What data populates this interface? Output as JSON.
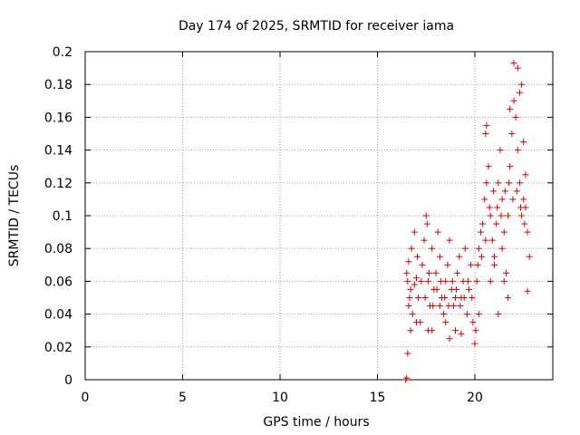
{
  "chart_data": {
    "type": "scatter",
    "title": "Day 174 of 2025, SRMTID for receiver iama",
    "xlabel": "GPS time / hours",
    "ylabel": "SRMTID / TECUs",
    "xlim": [
      0,
      24
    ],
    "ylim": [
      0,
      0.2
    ],
    "x_ticks": [
      "0",
      "5",
      "10",
      "15",
      "20"
    ],
    "x_tick_values": [
      0,
      5,
      10,
      15,
      20
    ],
    "y_ticks": [
      "0",
      "0.02",
      "0.04",
      "0.06",
      "0.08",
      "0.1",
      "0.12",
      "0.14",
      "0.16",
      "0.18",
      "0.2"
    ],
    "y_tick_values": [
      0,
      0.02,
      0.04,
      0.06,
      0.08,
      0.1,
      0.12,
      0.14,
      0.16,
      0.18,
      0.2
    ],
    "grid": true,
    "marker": "+",
    "color": "#e00000",
    "series": [
      {
        "points": [
          [
            16.45,
            0.0
          ],
          [
            16.5,
            0.001
          ],
          [
            16.55,
            0.016
          ],
          [
            16.5,
            0.065
          ],
          [
            16.6,
            0.045
          ],
          [
            16.7,
            0.055
          ],
          [
            16.8,
            0.04
          ],
          [
            16.9,
            0.058
          ],
          [
            16.6,
            0.072
          ],
          [
            16.75,
            0.08
          ],
          [
            17.0,
            0.062
          ],
          [
            17.1,
            0.05
          ],
          [
            17.2,
            0.035
          ],
          [
            17.3,
            0.07
          ],
          [
            17.4,
            0.085
          ],
          [
            17.5,
            0.1
          ],
          [
            17.55,
            0.095
          ],
          [
            17.6,
            0.06
          ],
          [
            17.7,
            0.045
          ],
          [
            17.8,
            0.03
          ],
          [
            17.9,
            0.055
          ],
          [
            18.0,
            0.065
          ],
          [
            18.1,
            0.09
          ],
          [
            18.2,
            0.075
          ],
          [
            18.3,
            0.05
          ],
          [
            18.4,
            0.04
          ],
          [
            18.5,
            0.06
          ],
          [
            18.6,
            0.07
          ],
          [
            18.7,
            0.085
          ],
          [
            18.8,
            0.055
          ],
          [
            18.9,
            0.045
          ],
          [
            19.0,
            0.03
          ],
          [
            19.1,
            0.065
          ],
          [
            19.2,
            0.075
          ],
          [
            19.3,
            0.05
          ],
          [
            19.4,
            0.06
          ],
          [
            19.5,
            0.08
          ],
          [
            19.6,
            0.04
          ],
          [
            19.7,
            0.055
          ],
          [
            19.8,
            0.07
          ],
          [
            19.9,
            0.035
          ],
          [
            20.0,
            0.022
          ],
          [
            20.05,
            0.03
          ],
          [
            20.1,
            0.06
          ],
          [
            20.2,
            0.08
          ],
          [
            20.3,
            0.09
          ],
          [
            20.4,
            0.095
          ],
          [
            20.5,
            0.11
          ],
          [
            20.6,
            0.12
          ],
          [
            20.7,
            0.13
          ],
          [
            20.8,
            0.1
          ],
          [
            20.9,
            0.085
          ],
          [
            21.0,
            0.07
          ],
          [
            21.1,
            0.095
          ],
          [
            21.2,
            0.12
          ],
          [
            21.3,
            0.14
          ],
          [
            21.4,
            0.11
          ],
          [
            21.5,
            0.09
          ],
          [
            21.6,
            0.065
          ],
          [
            21.7,
            0.1
          ],
          [
            21.8,
            0.13
          ],
          [
            21.9,
            0.15
          ],
          [
            22.0,
            0.17
          ],
          [
            22.1,
            0.16
          ],
          [
            22.2,
            0.14
          ],
          [
            22.3,
            0.12
          ],
          [
            22.4,
            0.1
          ],
          [
            22.5,
            0.11
          ],
          [
            22.6,
            0.125
          ],
          [
            22.7,
            0.09
          ],
          [
            22.8,
            0.075
          ],
          [
            22.4,
            0.18
          ],
          [
            22.2,
            0.19
          ],
          [
            22.0,
            0.193
          ],
          [
            21.7,
            0.05
          ],
          [
            21.5,
            0.06
          ],
          [
            22.7,
            0.054
          ],
          [
            21.2,
            0.04
          ],
          [
            20.6,
            0.155
          ],
          [
            20.55,
            0.15
          ],
          [
            21.8,
            0.165
          ],
          [
            22.3,
            0.175
          ],
          [
            22.5,
            0.145
          ],
          [
            16.7,
            0.03
          ],
          [
            17.0,
            0.035
          ],
          [
            17.6,
            0.03
          ],
          [
            18.7,
            0.025
          ],
          [
            19.3,
            0.028
          ],
          [
            18.2,
            0.045
          ],
          [
            19.0,
            0.05
          ],
          [
            17.8,
            0.08
          ],
          [
            16.9,
            0.09
          ],
          [
            18.5,
            0.035
          ],
          [
            20.2,
            0.04
          ],
          [
            20.8,
            0.06
          ],
          [
            21.0,
            0.075
          ],
          [
            21.4,
            0.08
          ],
          [
            22.6,
            0.105
          ],
          [
            16.55,
            0.06
          ],
          [
            16.65,
            0.05
          ],
          [
            17.05,
            0.075
          ],
          [
            17.25,
            0.06
          ],
          [
            17.45,
            0.05
          ],
          [
            17.65,
            0.065
          ],
          [
            17.85,
            0.045
          ],
          [
            18.05,
            0.055
          ],
          [
            18.25,
            0.06
          ],
          [
            18.45,
            0.05
          ],
          [
            18.65,
            0.045
          ],
          [
            18.85,
            0.06
          ],
          [
            19.05,
            0.055
          ],
          [
            19.25,
            0.045
          ],
          [
            19.45,
            0.05
          ],
          [
            19.65,
            0.06
          ],
          [
            19.85,
            0.05
          ],
          [
            20.15,
            0.07
          ],
          [
            20.35,
            0.075
          ],
          [
            20.55,
            0.085
          ],
          [
            20.75,
            0.105
          ],
          [
            20.95,
            0.115
          ],
          [
            21.15,
            0.105
          ],
          [
            21.35,
            0.1
          ],
          [
            21.55,
            0.115
          ],
          [
            21.75,
            0.12
          ],
          [
            21.95,
            0.11
          ],
          [
            22.15,
            0.115
          ],
          [
            22.35,
            0.105
          ],
          [
            22.55,
            0.095
          ]
        ]
      }
    ]
  }
}
